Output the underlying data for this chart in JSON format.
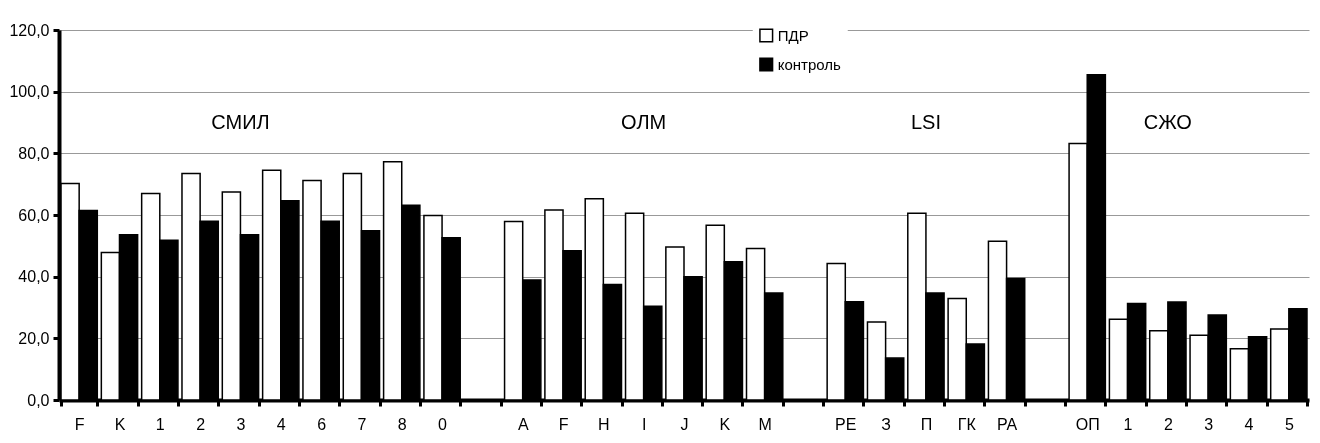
{
  "chart_data": {
    "type": "bar",
    "categories": [
      "F",
      "K",
      "1",
      "2",
      "3",
      "4",
      "6",
      "7",
      "8",
      "0",
      null,
      "A",
      "F",
      "H",
      "I",
      "J",
      "K",
      "M",
      null,
      "РЕ",
      "З",
      "П",
      "ГК",
      "РА",
      null,
      "ОП",
      "1",
      "2",
      "3",
      "4",
      "5"
    ],
    "series": [
      {
        "name": "ПДР",
        "color": "#ffffff",
        "values": [
          70.2,
          47.8,
          67.0,
          73.5,
          67.5,
          74.5,
          71.2,
          73.5,
          77.3,
          59.8,
          null,
          57.9,
          61.6,
          65.3,
          60.6,
          49.6,
          56.7,
          49.1,
          null,
          44.3,
          25.3,
          60.6,
          32.9,
          51.5,
          null,
          83.2,
          26.2,
          22.5,
          21.0,
          16.6,
          23.0
        ]
      },
      {
        "name": "контроль",
        "color": "#000000",
        "values": [
          61.5,
          53.6,
          51.8,
          58.0,
          53.6,
          64.6,
          58.0,
          54.9,
          63.2,
          52.6,
          null,
          38.9,
          48.4,
          37.5,
          30.4,
          40.0,
          44.8,
          34.7,
          null,
          31.9,
          13.6,
          34.7,
          18.2,
          39.4,
          null,
          105.5,
          31.3,
          31.8,
          27.6,
          20.5,
          29.6
        ]
      }
    ],
    "annotations": [
      "СМИЛ",
      "ОЛМ",
      "LSI",
      "СЖО"
    ],
    "ylim": [
      0,
      120
    ],
    "yticks": [
      {
        "value": 0,
        "label": "0,0"
      },
      {
        "value": 20,
        "label": "20,0"
      },
      {
        "value": 40,
        "label": "40,0"
      },
      {
        "value": 60,
        "label": "60,0"
      },
      {
        "value": 80,
        "label": "80,0"
      },
      {
        "value": 100,
        "label": "100,0"
      },
      {
        "value": 120,
        "label": "120,0"
      }
    ],
    "grid": "y",
    "legend": "top"
  }
}
